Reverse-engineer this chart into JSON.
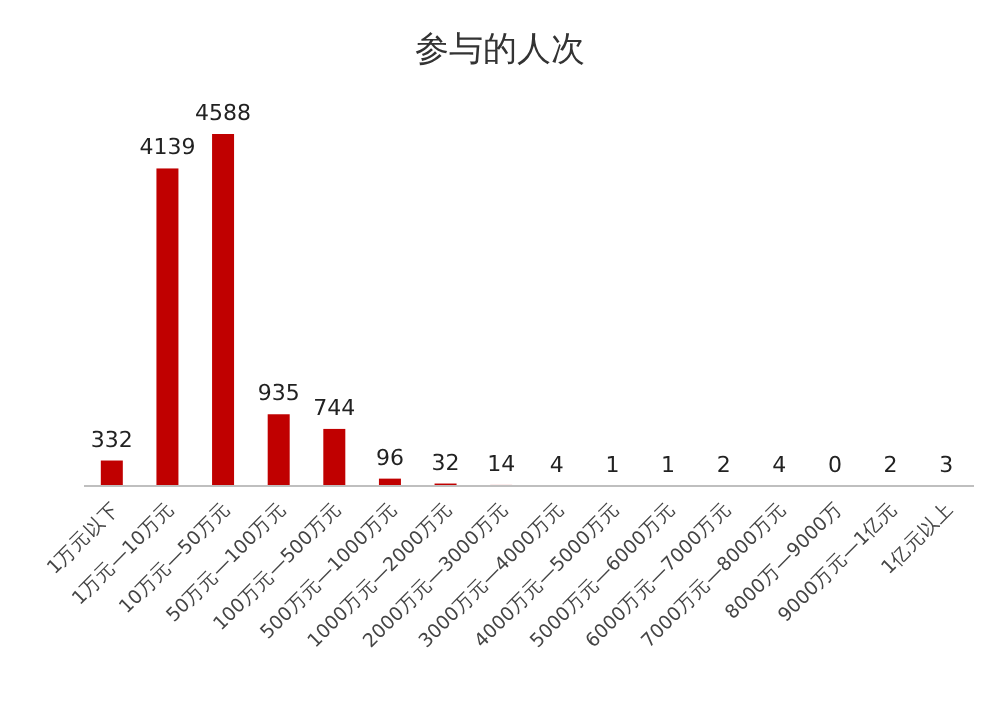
{
  "chart_data": {
    "type": "bar",
    "title": "参与的人次",
    "categories": [
      "1万元以下",
      "1万元—10万元",
      "10万元—50万元",
      "50万元—100万元",
      "100万元—500万元",
      "500万元—1000万元",
      "1000万元—2000万元",
      "2000万元—3000万元",
      "3000万元—4000万元",
      "4000万元—5000万元",
      "5000万元—6000万元",
      "6000万元—7000万元",
      "7000万元—8000万元",
      "8000万—9000万",
      "9000万元—1亿元",
      "1亿元以上"
    ],
    "values": [
      332,
      4139,
      4588,
      935,
      744,
      96,
      32,
      14,
      4,
      1,
      1,
      2,
      4,
      0,
      2,
      3
    ],
    "color": "#c00000",
    "data_labels": true
  }
}
